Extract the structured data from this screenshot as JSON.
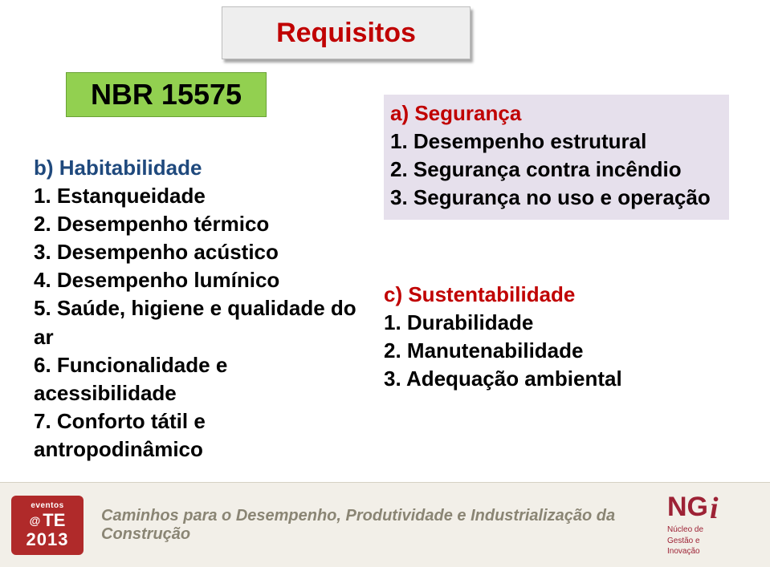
{
  "colors": {
    "title_red": "#c00000",
    "nbr_green": "#92d050",
    "heading_blue": "#1f497d",
    "block_a_bg": "#e6e0ec",
    "footer_bg": "#f2efe8",
    "footer_text": "#8a8574",
    "cte_bg": "#b02a2a",
    "ngi_color": "#9d2235"
  },
  "typography": {
    "title_fontsize": 34,
    "nbr_fontsize": 36,
    "body_fontsize": 26,
    "footer_title_fontsize": 20
  },
  "title": "Requisitos",
  "nbr_label": "NBR 15575",
  "block_b": {
    "heading": "b) Habitabilidade",
    "items": [
      "1.   Estanqueidade",
      "2.   Desempenho térmico",
      "3.   Desempenho acústico",
      "4.   Desempenho lumínico",
      "5.   Saúde, higiene e qualidade do ar",
      "6.   Funcionalidade e acessibilidade",
      "7.   Conforto tátil e antropodinâmico"
    ]
  },
  "block_a": {
    "heading": "a) Segurança",
    "items": [
      "1.   Desempenho estrutural",
      "2.   Segurança contra incêndio",
      "3.   Segurança no uso e operação"
    ]
  },
  "block_c": {
    "heading": "c) Sustentabilidade",
    "items": [
      "1.   Durabilidade",
      "2.   Manutenabilidade",
      "3.   Adequação ambiental"
    ]
  },
  "footer": {
    "cte_eventos": "eventos",
    "cte_at": "@",
    "cte_te": "TE",
    "cte_year": "2013",
    "caption": "Caminhos para o Desempenho, Produtividade e Industrialização da Construção",
    "ngi_top": "NG",
    "ngi_i": "i",
    "ngi_sub1": "Núcleo de",
    "ngi_sub2": "Gestão e",
    "ngi_sub3": "Inovação"
  }
}
